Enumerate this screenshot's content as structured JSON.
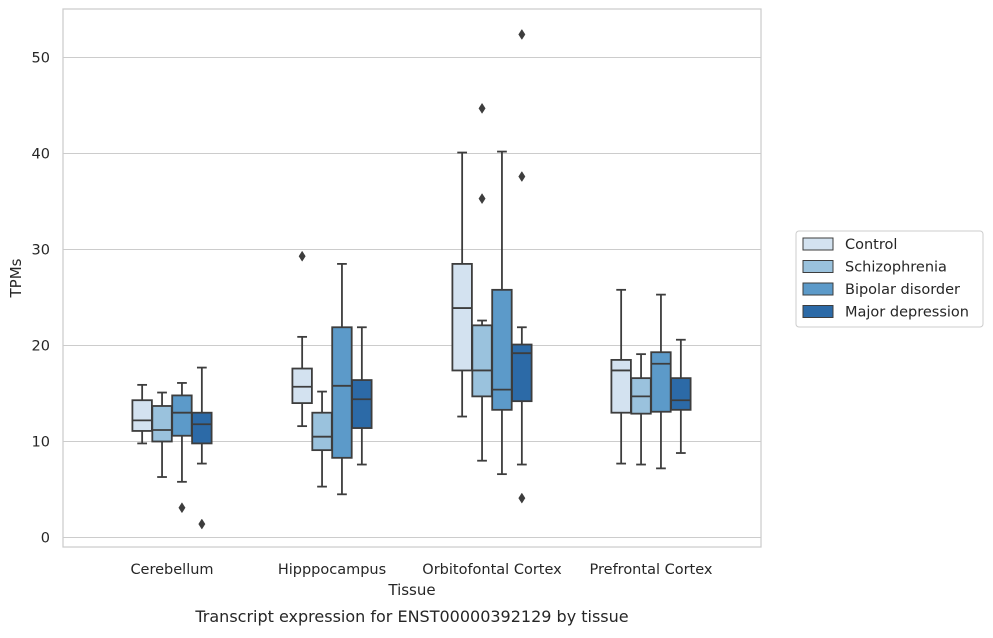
{
  "chart_data": {
    "type": "boxplot",
    "title": "",
    "caption": "Transcript expression for ENST00000392129 by tissue",
    "xlabel": "Tissue",
    "ylabel": "TPMs",
    "ylim": [
      -1,
      55
    ],
    "yticks": [
      0,
      10,
      20,
      30,
      40,
      50
    ],
    "grid": true,
    "legend_position": "right-outside",
    "categories": [
      "Cerebellum",
      "Hipppocampus",
      "Orbitofontal Cortex",
      "Prefrontal Cortex"
    ],
    "series": [
      {
        "name": "Control",
        "color": "#d3e2f0",
        "boxes": [
          {
            "whislo": 9.8,
            "q1": 11.1,
            "med": 12.2,
            "q3": 14.3,
            "whishi": 15.9,
            "fliers": []
          },
          {
            "whislo": 11.6,
            "q1": 14.0,
            "med": 15.7,
            "q3": 17.6,
            "whishi": 20.9,
            "fliers": [
              29.3
            ]
          },
          {
            "whislo": 12.6,
            "q1": 17.4,
            "med": 23.9,
            "q3": 28.5,
            "whishi": 40.1,
            "fliers": []
          },
          {
            "whislo": 7.7,
            "q1": 13.0,
            "med": 17.4,
            "q3": 18.5,
            "whishi": 25.8,
            "fliers": []
          }
        ]
      },
      {
        "name": "Schizophrenia",
        "color": "#9ac2dd",
        "boxes": [
          {
            "whislo": 6.3,
            "q1": 10.0,
            "med": 11.2,
            "q3": 13.7,
            "whishi": 15.1,
            "fliers": []
          },
          {
            "whislo": 5.3,
            "q1": 9.1,
            "med": 10.5,
            "q3": 13.0,
            "whishi": 15.2,
            "fliers": []
          },
          {
            "whislo": 8.0,
            "q1": 14.7,
            "med": 17.4,
            "q3": 22.1,
            "whishi": 22.6,
            "fliers": [
              44.7,
              35.3
            ]
          },
          {
            "whislo": 7.6,
            "q1": 12.9,
            "med": 14.7,
            "q3": 16.6,
            "whishi": 19.1,
            "fliers": []
          }
        ]
      },
      {
        "name": "Bipolar disorder",
        "color": "#5c9ac9",
        "boxes": [
          {
            "whislo": 5.8,
            "q1": 10.6,
            "med": 13.0,
            "q3": 14.8,
            "whishi": 16.1,
            "fliers": [
              3.1
            ]
          },
          {
            "whislo": 4.5,
            "q1": 8.3,
            "med": 15.8,
            "q3": 21.9,
            "whishi": 28.5,
            "fliers": []
          },
          {
            "whislo": 6.6,
            "q1": 13.3,
            "med": 15.4,
            "q3": 25.8,
            "whishi": 40.2,
            "fliers": []
          },
          {
            "whislo": 7.2,
            "q1": 13.1,
            "med": 18.1,
            "q3": 19.3,
            "whishi": 25.3,
            "fliers": []
          }
        ]
      },
      {
        "name": "Major depression",
        "color": "#2c6aa7",
        "boxes": [
          {
            "whislo": 7.7,
            "q1": 9.8,
            "med": 11.8,
            "q3": 13.0,
            "whishi": 17.7,
            "fliers": [
              1.4
            ]
          },
          {
            "whislo": 7.6,
            "q1": 11.4,
            "med": 14.4,
            "q3": 16.4,
            "whishi": 21.9,
            "fliers": []
          },
          {
            "whislo": 7.6,
            "q1": 14.2,
            "med": 19.2,
            "q3": 20.1,
            "whishi": 21.9,
            "fliers": [
              52.4,
              37.6,
              4.1
            ]
          },
          {
            "whislo": 8.8,
            "q1": 13.3,
            "med": 14.3,
            "q3": 16.6,
            "whishi": 20.6,
            "fliers": []
          }
        ]
      }
    ]
  }
}
